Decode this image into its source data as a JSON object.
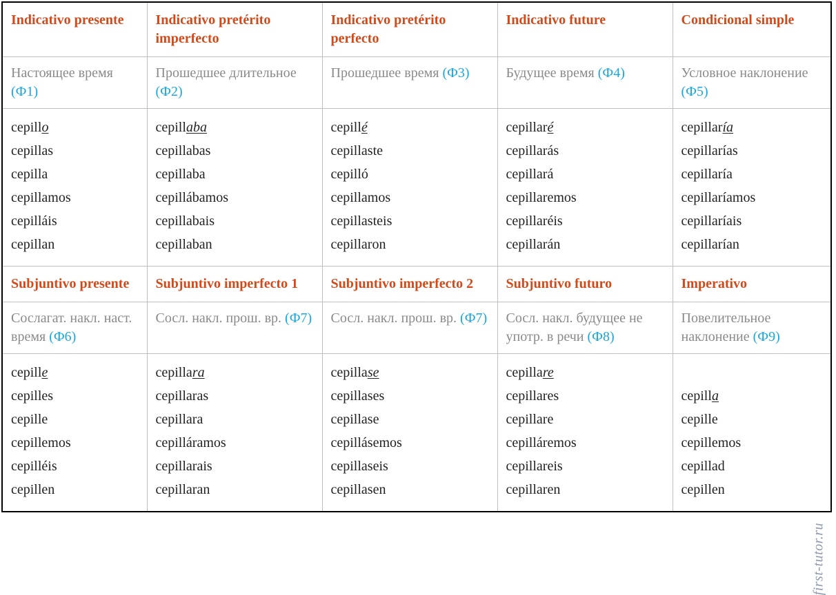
{
  "colors": {
    "header": "#d24a1a",
    "subtext": "#8a8a8a",
    "tag": "#1aa7e0",
    "border": "#bfbfbf",
    "outer_border": "#000000",
    "text": "#222222",
    "background": "#ffffff"
  },
  "watermark": "first-tutor.ru",
  "columns": [
    {
      "header": "Indicativo presente",
      "sub_text": "Настоящее время ",
      "sub_tag": "(Ф1)",
      "forms": [
        {
          "stem": "cepill",
          "ending": "o",
          "underline": true
        },
        {
          "stem": "cepillas"
        },
        {
          "stem": "cepilla"
        },
        {
          "stem": "cepillamos"
        },
        {
          "stem": "cepilláis"
        },
        {
          "stem": "cepillan"
        }
      ]
    },
    {
      "header": "Indicativo pretérito imperfecto",
      "sub_text": "Прошедшее длительное ",
      "sub_tag": "(Ф2)",
      "forms": [
        {
          "stem": "cepill",
          "ending": "aba",
          "underline": true
        },
        {
          "stem": "cepillabas"
        },
        {
          "stem": "cepillaba"
        },
        {
          "stem": "cepillábamos"
        },
        {
          "stem": "cepillabais"
        },
        {
          "stem": "cepillaban"
        }
      ]
    },
    {
      "header": "Indicativo pretérito perfecto",
      "sub_text": "Прошедшее время ",
      "sub_tag": "(Ф3)",
      "forms": [
        {
          "stem": "cepill",
          "ending": "é",
          "underline": true
        },
        {
          "stem": "cepillaste"
        },
        {
          "stem": "cepilló"
        },
        {
          "stem": "cepillamos"
        },
        {
          "stem": "cepillasteis"
        },
        {
          "stem": "cepillaron"
        }
      ]
    },
    {
      "header": "Indicativo future",
      "sub_text": "Будущее время ",
      "sub_tag": "(Ф4)",
      "forms": [
        {
          "stem": "cepillar",
          "ending": "é",
          "underline": true
        },
        {
          "stem": "cepillarás"
        },
        {
          "stem": "cepillará"
        },
        {
          "stem": "cepillaremos"
        },
        {
          "stem": "cepillaréis"
        },
        {
          "stem": "cepillarán"
        }
      ]
    },
    {
      "header": "Condicional simple",
      "sub_text": "Условное наклонение ",
      "sub_tag": "(Ф5)",
      "forms": [
        {
          "stem": "cepillar",
          "ending": "ía",
          "underline": true
        },
        {
          "stem": "cepillarías"
        },
        {
          "stem": "cepillaría"
        },
        {
          "stem": "cepillaríamos"
        },
        {
          "stem": "cepillaríais"
        },
        {
          "stem": "cepillarían"
        }
      ]
    }
  ],
  "columns2": [
    {
      "header": "Subjuntivo presente",
      "sub_text": "Сослагат. накл. наст. время ",
      "sub_tag": "(Ф6)",
      "forms": [
        {
          "stem": "cepill",
          "ending": "e",
          "underline": true
        },
        {
          "stem": "cepilles"
        },
        {
          "stem": "cepille"
        },
        {
          "stem": "cepillemos"
        },
        {
          "stem": "cepilléis"
        },
        {
          "stem": "cepillen"
        }
      ]
    },
    {
      "header": "Subjuntivo imperfecto 1",
      "sub_text": "Сосл. накл. прош. вр. ",
      "sub_tag": "(Ф7)",
      "forms": [
        {
          "stem": "cepilla",
          "ending": "ra",
          "underline": true
        },
        {
          "stem": "cepillaras"
        },
        {
          "stem": "cepillara"
        },
        {
          "stem": "cepilláramos"
        },
        {
          "stem": "cepillarais"
        },
        {
          "stem": "cepillaran"
        }
      ]
    },
    {
      "header": "Subjuntivo imperfecto 2",
      "sub_text": "Сосл. накл. прош. вр. ",
      "sub_tag": "(Ф7)",
      "forms": [
        {
          "stem": "cepilla",
          "ending": "se",
          "underline": true
        },
        {
          "stem": "cepillases"
        },
        {
          "stem": "cepillase"
        },
        {
          "stem": "cepillásemos"
        },
        {
          "stem": "cepillaseis"
        },
        {
          "stem": "cepillasen"
        }
      ]
    },
    {
      "header": "Subjuntivo futuro",
      "sub_text": "Сосл. накл. будущее не употр. в речи ",
      "sub_tag": "(Ф8)",
      "forms": [
        {
          "stem": "cepilla",
          "ending": "re",
          "underline": true
        },
        {
          "stem": "cepillares"
        },
        {
          "stem": "cepillare"
        },
        {
          "stem": "cepilláremos"
        },
        {
          "stem": "cepillareis"
        },
        {
          "stem": "cepillaren"
        }
      ]
    },
    {
      "header": "Imperativo",
      "sub_text": "Повелительное наклонение ",
      "sub_tag": "(Ф9)",
      "forms": [
        {
          "blank": true
        },
        {
          "stem": "cepill",
          "ending": "a",
          "underline": true
        },
        {
          "stem": "cepille"
        },
        {
          "stem": "cepillemos"
        },
        {
          "stem": "cepillad"
        },
        {
          "stem": "cepillen"
        }
      ]
    }
  ]
}
